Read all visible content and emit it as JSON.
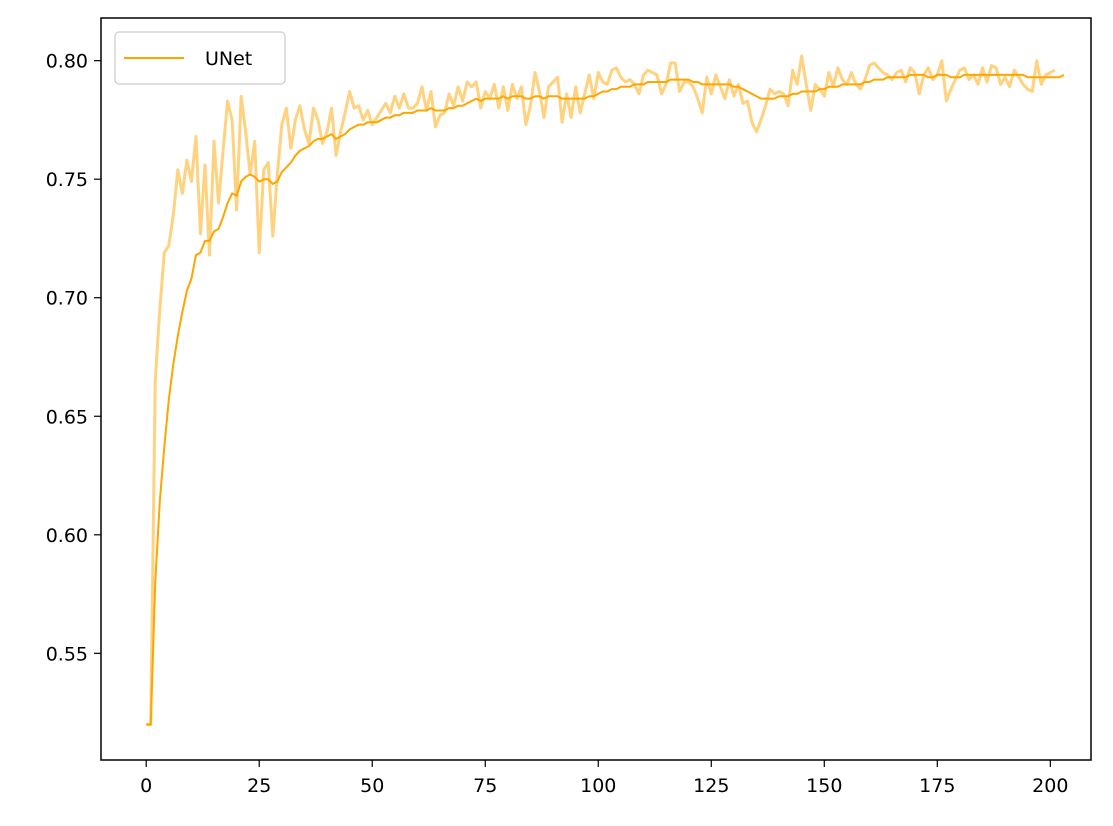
{
  "chart_data": {
    "type": "line",
    "title": "",
    "xlabel": "",
    "ylabel": "",
    "xlim": [
      -10,
      209
    ],
    "ylim": [
      0.505,
      0.818
    ],
    "xticks": [
      0,
      25,
      50,
      75,
      100,
      125,
      150,
      175,
      200
    ],
    "yticks": [
      0.55,
      0.6,
      0.65,
      0.7,
      0.75,
      0.8
    ],
    "ytick_labels": [
      "0.55",
      "0.60",
      "0.65",
      "0.70",
      "0.75",
      "0.80"
    ],
    "grid": false,
    "legend_position": "top-left",
    "legend": [
      {
        "label": "UNet",
        "color": "#ffa500"
      }
    ],
    "series": [
      {
        "name": "UNet",
        "role": "raw",
        "color": "#ffa500",
        "opacity": 0.5,
        "x_start": 0,
        "x_step": 1,
        "values": [
          0.52,
          0.52,
          0.665,
          0.695,
          0.719,
          0.722,
          0.735,
          0.754,
          0.744,
          0.758,
          0.749,
          0.768,
          0.727,
          0.756,
          0.718,
          0.766,
          0.74,
          0.762,
          0.783,
          0.775,
          0.737,
          0.785,
          0.77,
          0.752,
          0.766,
          0.719,
          0.754,
          0.757,
          0.726,
          0.752,
          0.773,
          0.78,
          0.763,
          0.775,
          0.781,
          0.771,
          0.765,
          0.78,
          0.775,
          0.765,
          0.77,
          0.78,
          0.76,
          0.77,
          0.778,
          0.787,
          0.78,
          0.781,
          0.775,
          0.779,
          0.773,
          0.776,
          0.779,
          0.782,
          0.778,
          0.785,
          0.78,
          0.786,
          0.78,
          0.78,
          0.782,
          0.789,
          0.779,
          0.787,
          0.772,
          0.777,
          0.778,
          0.786,
          0.781,
          0.789,
          0.783,
          0.791,
          0.789,
          0.791,
          0.78,
          0.787,
          0.784,
          0.79,
          0.78,
          0.789,
          0.779,
          0.79,
          0.784,
          0.789,
          0.773,
          0.781,
          0.795,
          0.787,
          0.776,
          0.789,
          0.791,
          0.793,
          0.774,
          0.786,
          0.776,
          0.789,
          0.778,
          0.786,
          0.794,
          0.784,
          0.795,
          0.791,
          0.79,
          0.796,
          0.797,
          0.793,
          0.791,
          0.792,
          0.79,
          0.786,
          0.794,
          0.796,
          0.795,
          0.794,
          0.786,
          0.79,
          0.799,
          0.799,
          0.787,
          0.791,
          0.791,
          0.789,
          0.784,
          0.778,
          0.793,
          0.786,
          0.794,
          0.789,
          0.784,
          0.792,
          0.785,
          0.79,
          0.782,
          0.783,
          0.774,
          0.77,
          0.775,
          0.781,
          0.788,
          0.786,
          0.787,
          0.786,
          0.781,
          0.796,
          0.79,
          0.802,
          0.79,
          0.779,
          0.79,
          0.788,
          0.785,
          0.795,
          0.789,
          0.797,
          0.792,
          0.79,
          0.795,
          0.79,
          0.788,
          0.792,
          0.798,
          0.799,
          0.797,
          0.795,
          0.794,
          0.792,
          0.795,
          0.796,
          0.791,
          0.797,
          0.795,
          0.786,
          0.794,
          0.797,
          0.792,
          0.794,
          0.8,
          0.783,
          0.788,
          0.792,
          0.796,
          0.797,
          0.792,
          0.794,
          0.79,
          0.797,
          0.791,
          0.798,
          0.797,
          0.79,
          0.793,
          0.789,
          0.796,
          0.793,
          0.79,
          0.788,
          0.787,
          0.8,
          0.79,
          0.794,
          0.795,
          0.796
        ]
      },
      {
        "name": "UNet",
        "role": "smoothed",
        "color": "#ffa500",
        "opacity": 1.0,
        "x_start": 0,
        "x_step": 1,
        "values": [
          0.52,
          0.52,
          0.58,
          0.614,
          0.637,
          0.657,
          0.672,
          0.684,
          0.694,
          0.703,
          0.708,
          0.718,
          0.719,
          0.724,
          0.724,
          0.728,
          0.729,
          0.734,
          0.74,
          0.744,
          0.743,
          0.749,
          0.751,
          0.752,
          0.751,
          0.749,
          0.75,
          0.75,
          0.748,
          0.749,
          0.753,
          0.755,
          0.757,
          0.76,
          0.762,
          0.763,
          0.764,
          0.766,
          0.767,
          0.767,
          0.768,
          0.769,
          0.767,
          0.768,
          0.769,
          0.771,
          0.772,
          0.773,
          0.773,
          0.774,
          0.774,
          0.774,
          0.775,
          0.776,
          0.776,
          0.777,
          0.777,
          0.778,
          0.778,
          0.778,
          0.779,
          0.779,
          0.779,
          0.78,
          0.779,
          0.779,
          0.779,
          0.78,
          0.78,
          0.781,
          0.781,
          0.782,
          0.783,
          0.784,
          0.783,
          0.784,
          0.784,
          0.784,
          0.784,
          0.785,
          0.784,
          0.785,
          0.785,
          0.785,
          0.784,
          0.784,
          0.785,
          0.785,
          0.784,
          0.785,
          0.785,
          0.785,
          0.784,
          0.784,
          0.784,
          0.784,
          0.784,
          0.784,
          0.785,
          0.785,
          0.786,
          0.787,
          0.787,
          0.788,
          0.788,
          0.789,
          0.789,
          0.789,
          0.79,
          0.79,
          0.79,
          0.791,
          0.791,
          0.791,
          0.791,
          0.791,
          0.792,
          0.792,
          0.792,
          0.792,
          0.792,
          0.791,
          0.791,
          0.79,
          0.79,
          0.79,
          0.79,
          0.79,
          0.79,
          0.79,
          0.789,
          0.789,
          0.788,
          0.787,
          0.786,
          0.785,
          0.784,
          0.784,
          0.784,
          0.784,
          0.785,
          0.785,
          0.785,
          0.786,
          0.786,
          0.787,
          0.787,
          0.787,
          0.787,
          0.788,
          0.788,
          0.789,
          0.789,
          0.789,
          0.79,
          0.79,
          0.79,
          0.79,
          0.79,
          0.791,
          0.791,
          0.792,
          0.792,
          0.792,
          0.793,
          0.793,
          0.793,
          0.793,
          0.793,
          0.794,
          0.794,
          0.794,
          0.794,
          0.793,
          0.793,
          0.794,
          0.794,
          0.794,
          0.793,
          0.793,
          0.793,
          0.794,
          0.794,
          0.794,
          0.794,
          0.794,
          0.794,
          0.794,
          0.794,
          0.794,
          0.794,
          0.794,
          0.794,
          0.794,
          0.794,
          0.793,
          0.793,
          0.793,
          0.793,
          0.793,
          0.793,
          0.793,
          0.793,
          0.794
        ]
      }
    ]
  }
}
